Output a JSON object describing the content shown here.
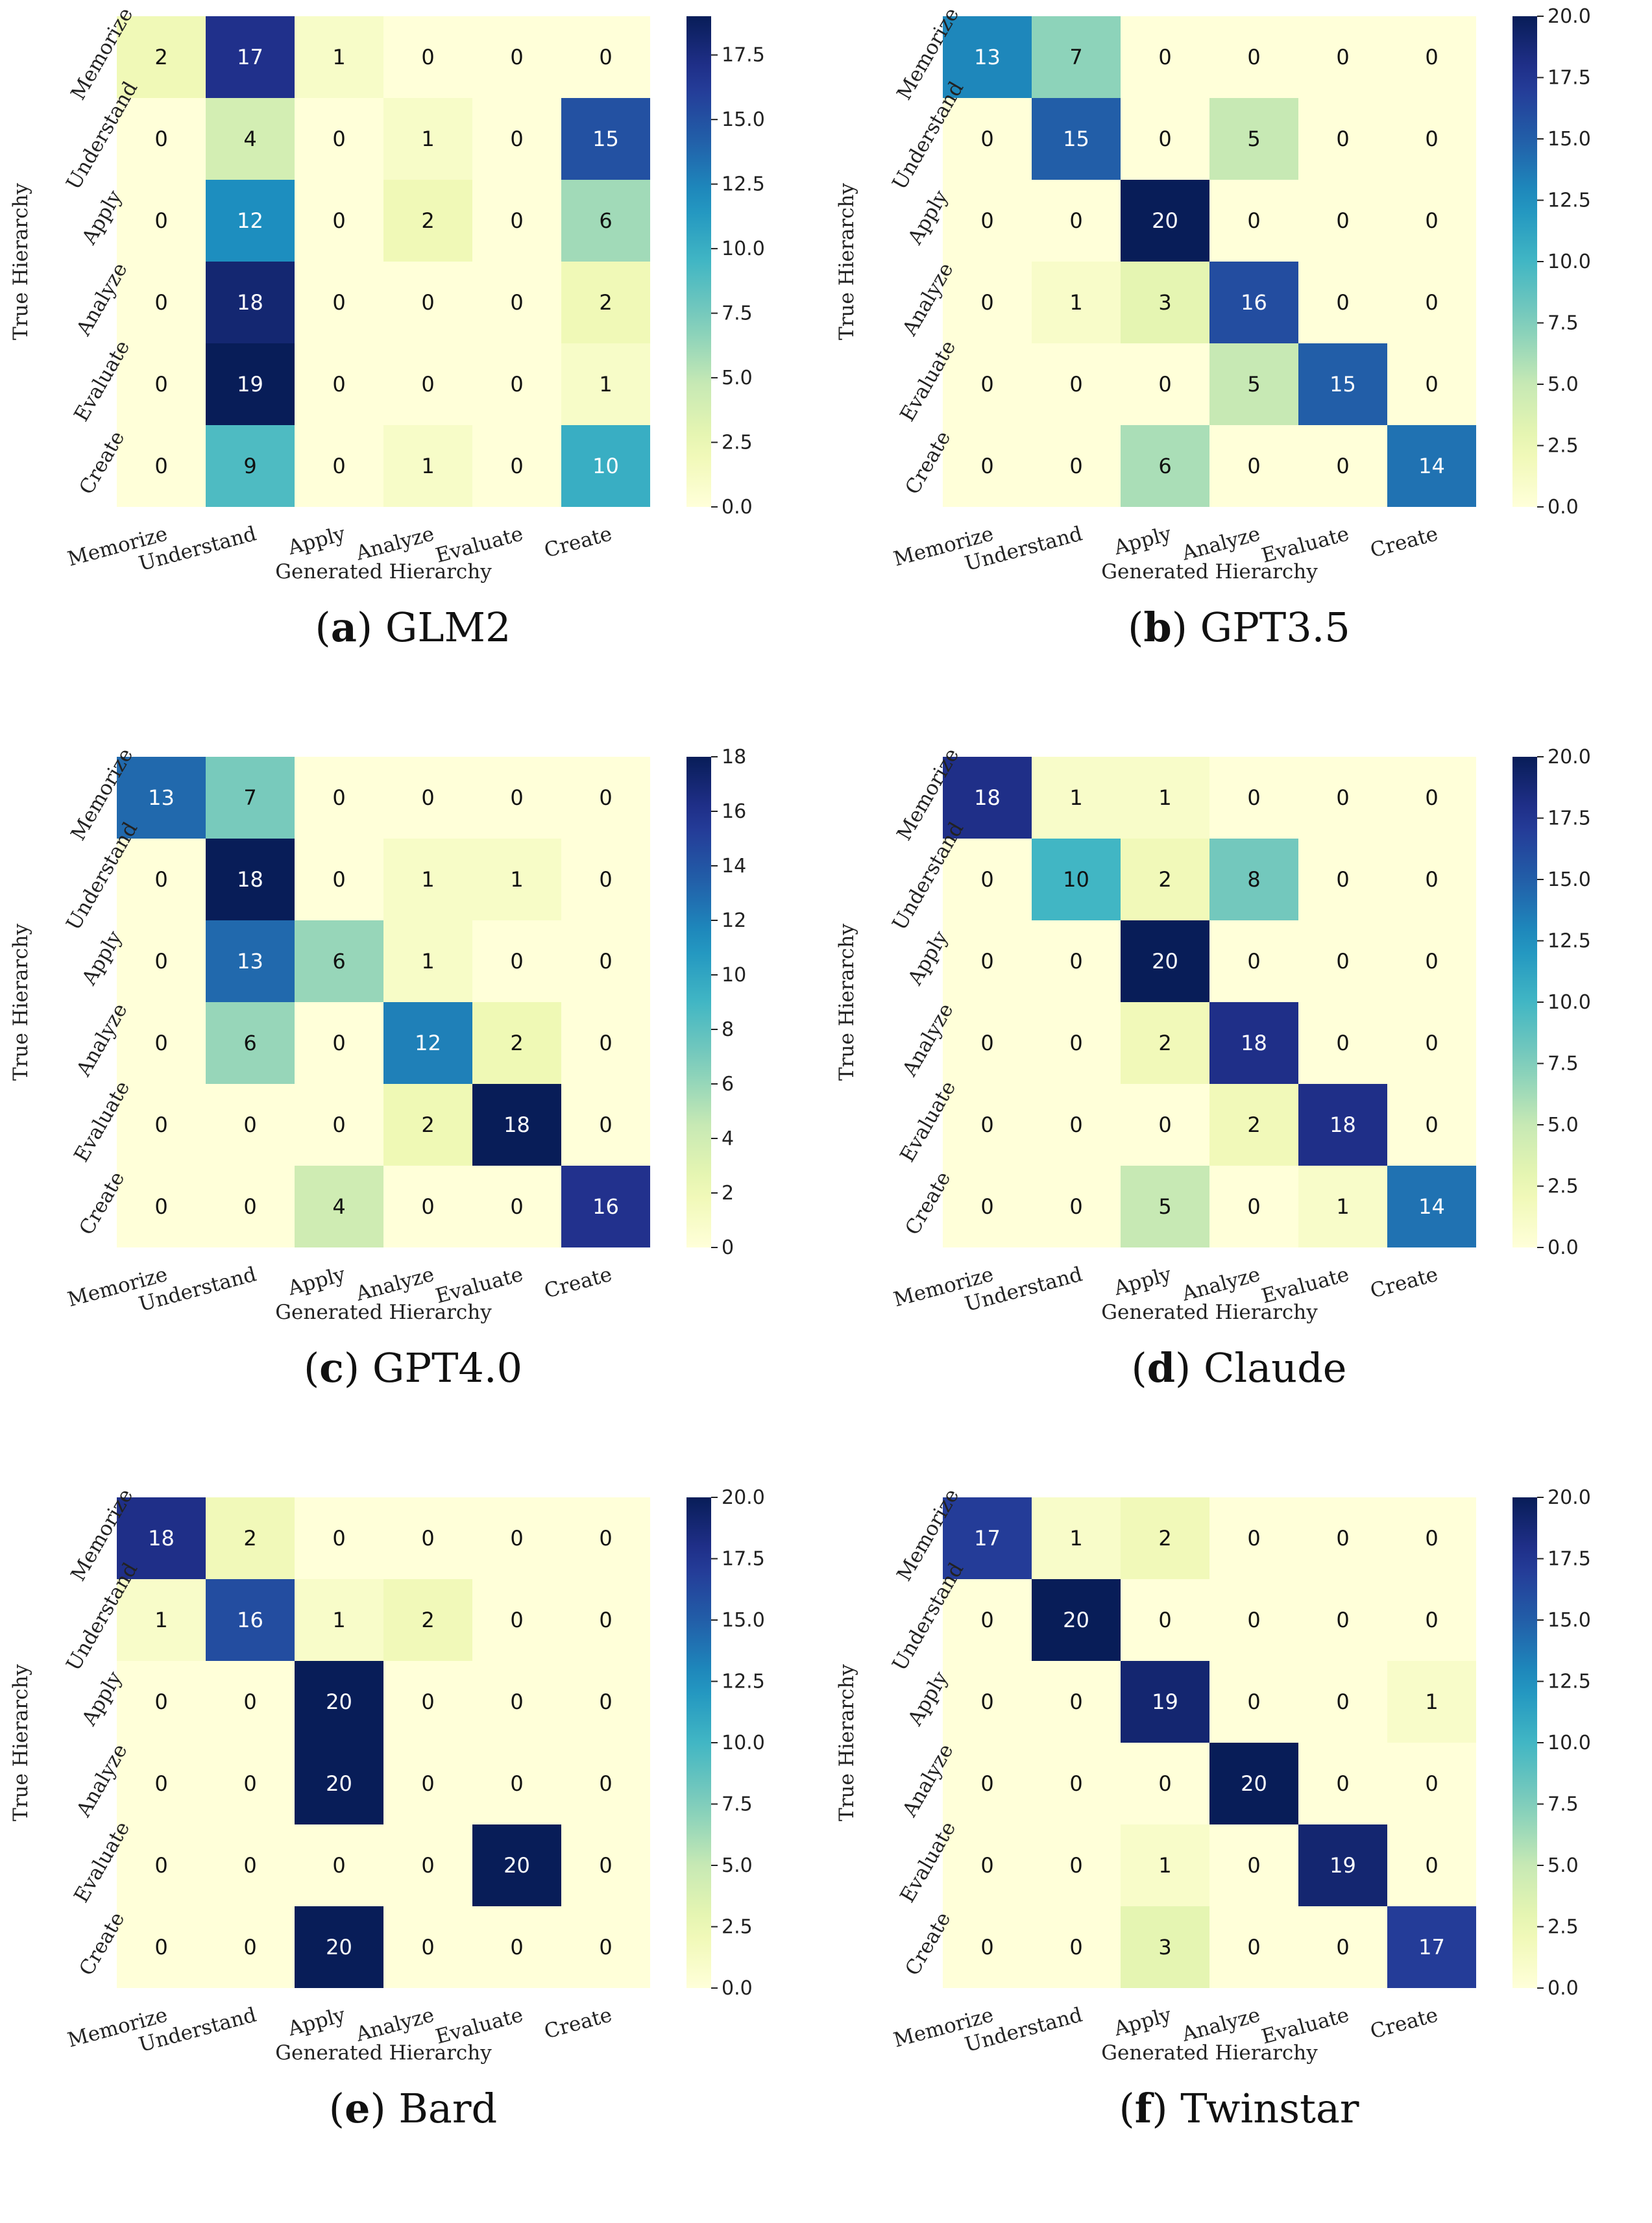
{
  "chart_data": [
    {
      "type": "heatmap",
      "subfigure_letter": "a",
      "subfigure_name": "GLM2",
      "x_categories": [
        "Memorize",
        "Understand",
        "Apply",
        "Analyze",
        "Evaluate",
        "Create"
      ],
      "y_categories": [
        "Memorize",
        "Understand",
        "Apply",
        "Analyze",
        "Evaluate",
        "Create"
      ],
      "xlabel": "Generated Hierarchy",
      "ylabel": "True Hierarchy",
      "values": [
        [
          2,
          17,
          1,
          0,
          0,
          0
        ],
        [
          0,
          4,
          0,
          1,
          0,
          15
        ],
        [
          0,
          12,
          0,
          2,
          0,
          6
        ],
        [
          0,
          18,
          0,
          0,
          0,
          2
        ],
        [
          0,
          19,
          0,
          0,
          0,
          1
        ],
        [
          0,
          9,
          0,
          1,
          0,
          10
        ]
      ],
      "colorbar_range": [
        0,
        19
      ],
      "colorbar_ticks": [
        "0.0",
        "2.5",
        "5.0",
        "7.5",
        "10.0",
        "12.5",
        "15.0",
        "17.5"
      ],
      "colormap": "YlGnBu"
    },
    {
      "type": "heatmap",
      "subfigure_letter": "b",
      "subfigure_name": "GPT3.5",
      "x_categories": [
        "Memorize",
        "Understand",
        "Apply",
        "Analyze",
        "Evaluate",
        "Create"
      ],
      "y_categories": [
        "Memorize",
        "Understand",
        "Apply",
        "Analyze",
        "Evaluate",
        "Create"
      ],
      "xlabel": "Generated Hierarchy",
      "ylabel": "True Hierarchy",
      "values": [
        [
          13,
          7,
          0,
          0,
          0,
          0
        ],
        [
          0,
          15,
          0,
          5,
          0,
          0
        ],
        [
          0,
          0,
          20,
          0,
          0,
          0
        ],
        [
          0,
          1,
          3,
          16,
          0,
          0
        ],
        [
          0,
          0,
          0,
          5,
          15,
          0
        ],
        [
          0,
          0,
          6,
          0,
          0,
          14
        ]
      ],
      "colorbar_range": [
        0,
        20
      ],
      "colorbar_ticks": [
        "0.0",
        "2.5",
        "5.0",
        "7.5",
        "10.0",
        "12.5",
        "15.0",
        "17.5",
        "20.0"
      ],
      "colormap": "YlGnBu"
    },
    {
      "type": "heatmap",
      "subfigure_letter": "c",
      "subfigure_name": "GPT4.0",
      "x_categories": [
        "Memorize",
        "Understand",
        "Apply",
        "Analyze",
        "Evaluate",
        "Create"
      ],
      "y_categories": [
        "Memorize",
        "Understand",
        "Apply",
        "Analyze",
        "Evaluate",
        "Create"
      ],
      "xlabel": "Generated Hierarchy",
      "ylabel": "True Hierarchy",
      "values": [
        [
          13,
          7,
          0,
          0,
          0,
          0
        ],
        [
          0,
          18,
          0,
          1,
          1,
          0
        ],
        [
          0,
          13,
          6,
          1,
          0,
          0
        ],
        [
          0,
          6,
          0,
          12,
          2,
          0
        ],
        [
          0,
          0,
          0,
          2,
          18,
          0
        ],
        [
          0,
          0,
          4,
          0,
          0,
          16
        ]
      ],
      "colorbar_range": [
        0,
        18
      ],
      "colorbar_ticks": [
        "0",
        "2",
        "4",
        "6",
        "8",
        "10",
        "12",
        "14",
        "16",
        "18"
      ],
      "colormap": "YlGnBu"
    },
    {
      "type": "heatmap",
      "subfigure_letter": "d",
      "subfigure_name": "Claude",
      "x_categories": [
        "Memorize",
        "Understand",
        "Apply",
        "Analyze",
        "Evaluate",
        "Create"
      ],
      "y_categories": [
        "Memorize",
        "Understand",
        "Apply",
        "Analyze",
        "Evaluate",
        "Create"
      ],
      "xlabel": "Generated Hierarchy",
      "ylabel": "True Hierarchy",
      "values": [
        [
          18,
          1,
          1,
          0,
          0,
          0
        ],
        [
          0,
          10,
          2,
          8,
          0,
          0
        ],
        [
          0,
          0,
          20,
          0,
          0,
          0
        ],
        [
          0,
          0,
          2,
          18,
          0,
          0
        ],
        [
          0,
          0,
          0,
          2,
          18,
          0
        ],
        [
          0,
          0,
          5,
          0,
          1,
          14
        ]
      ],
      "colorbar_range": [
        0,
        20
      ],
      "colorbar_ticks": [
        "0.0",
        "2.5",
        "5.0",
        "7.5",
        "10.0",
        "12.5",
        "15.0",
        "17.5",
        "20.0"
      ],
      "colormap": "YlGnBu"
    },
    {
      "type": "heatmap",
      "subfigure_letter": "e",
      "subfigure_name": "Bard",
      "x_categories": [
        "Memorize",
        "Understand",
        "Apply",
        "Analyze",
        "Evaluate",
        "Create"
      ],
      "y_categories": [
        "Memorize",
        "Understand",
        "Apply",
        "Analyze",
        "Evaluate",
        "Create"
      ],
      "xlabel": "Generated Hierarchy",
      "ylabel": "True Hierarchy",
      "values": [
        [
          18,
          2,
          0,
          0,
          0,
          0
        ],
        [
          1,
          16,
          1,
          2,
          0,
          0
        ],
        [
          0,
          0,
          20,
          0,
          0,
          0
        ],
        [
          0,
          0,
          20,
          0,
          0,
          0
        ],
        [
          0,
          0,
          0,
          0,
          20,
          0
        ],
        [
          0,
          0,
          20,
          0,
          0,
          0
        ]
      ],
      "colorbar_range": [
        0,
        20
      ],
      "colorbar_ticks": [
        "0.0",
        "2.5",
        "5.0",
        "7.5",
        "10.0",
        "12.5",
        "15.0",
        "17.5",
        "20.0"
      ],
      "colormap": "YlGnBu"
    },
    {
      "type": "heatmap",
      "subfigure_letter": "f",
      "subfigure_name": "Twinstar",
      "x_categories": [
        "Memorize",
        "Understand",
        "Apply",
        "Analyze",
        "Evaluate",
        "Create"
      ],
      "y_categories": [
        "Memorize",
        "Understand",
        "Apply",
        "Analyze",
        "Evaluate",
        "Create"
      ],
      "xlabel": "Generated Hierarchy",
      "ylabel": "True Hierarchy",
      "values": [
        [
          17,
          1,
          2,
          0,
          0,
          0
        ],
        [
          0,
          20,
          0,
          0,
          0,
          0
        ],
        [
          0,
          0,
          19,
          0,
          0,
          1
        ],
        [
          0,
          0,
          0,
          20,
          0,
          0
        ],
        [
          0,
          0,
          1,
          0,
          19,
          0
        ],
        [
          0,
          0,
          3,
          0,
          0,
          17
        ]
      ],
      "colorbar_range": [
        0,
        20
      ],
      "colorbar_ticks": [
        "0.0",
        "2.5",
        "5.0",
        "7.5",
        "10.0",
        "12.5",
        "15.0",
        "17.5",
        "20.0"
      ],
      "colormap": "YlGnBu"
    }
  ]
}
